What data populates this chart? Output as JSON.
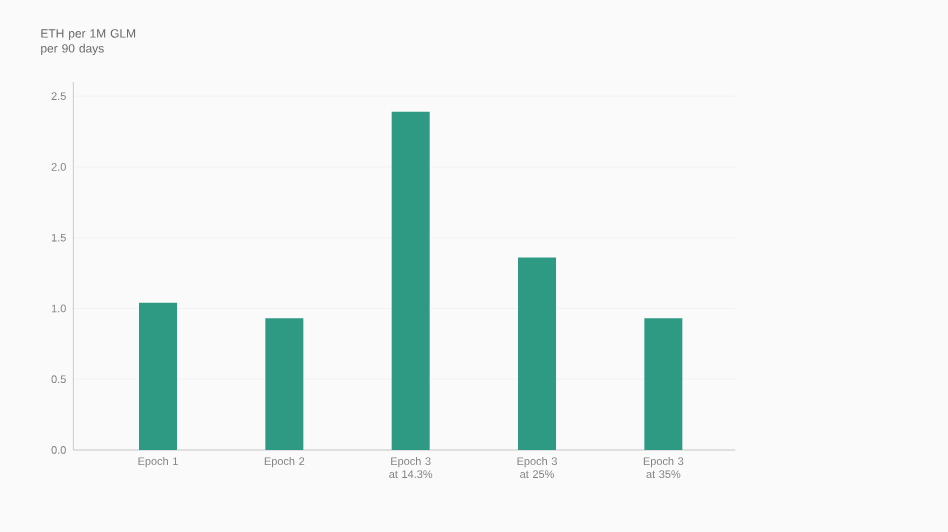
{
  "chart_data": {
    "type": "bar",
    "ylabel": "ETH per 1M GLM per 90 days",
    "categories": [
      "Epoch 1",
      "Epoch 2",
      "Epoch 3 at 14.3%",
      "Epoch 3 at 25%",
      "Epoch 3 at 35%"
    ],
    "values": [
      1.04,
      0.93,
      2.39,
      1.36,
      0.93
    ],
    "color": "#2e9a84",
    "ylim": [
      0,
      2.6
    ],
    "yticks": [
      {
        "value": 0,
        "label": "0.0"
      },
      {
        "value": 0.5,
        "label": "0.5"
      },
      {
        "value": 1,
        "label": "1.0"
      },
      {
        "value": 1.5,
        "label": "1.5"
      },
      {
        "value": 2,
        "label": "2.0"
      },
      {
        "value": 2.5,
        "label": "2.5"
      }
    ],
    "grid": "y"
  }
}
